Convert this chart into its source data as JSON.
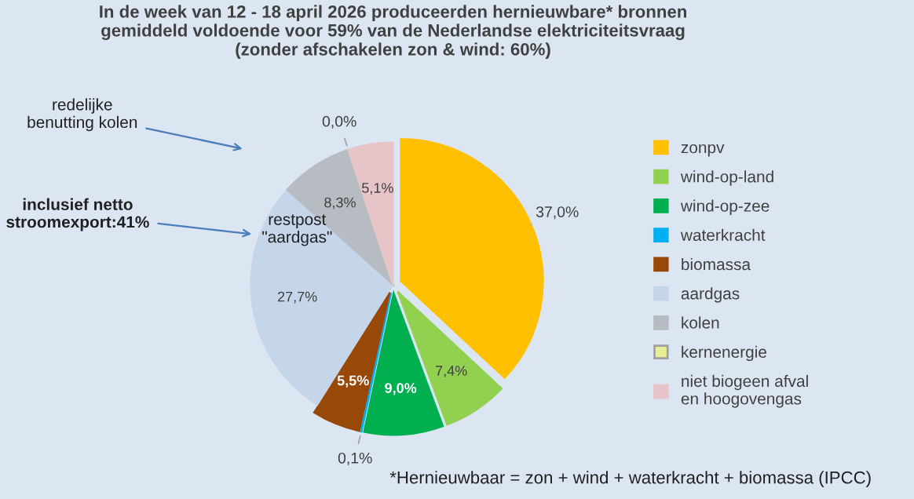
{
  "chart_data": {
    "type": "pie",
    "title": "In de week van 12 - 18 april 2026 produceerden hernieuwbare* bronnen\ngemiddeld voldoende voor 59% van de Nederlandse elektriciteitsvraag\n(zonder afschakelen zon & wind: 60%)",
    "categories": [
      "zonpv",
      "wind-op-land",
      "wind-op-zee",
      "waterkracht",
      "biomassa",
      "aardgas",
      "kolen",
      "kernenergie",
      "niet biogeen afval\nen hoogovengas"
    ],
    "values": [
      37.0,
      7.4,
      9.0,
      0.1,
      5.5,
      27.7,
      8.3,
      0.0,
      5.1
    ],
    "colors": [
      "#ffc000",
      "#92d050",
      "#00b050",
      "#00b0f0",
      "#984807",
      "#c5d5ea",
      "#b7bcc2",
      "#e9ee94",
      "#e6c4c8"
    ],
    "value_labels": [
      "37,0%",
      "7,4%",
      "9,0%",
      "0,1%",
      "5,5%",
      "27,7%",
      "8,3%",
      "0,0%",
      "5,1%"
    ],
    "legend": "right",
    "annotations": [
      "redelijke\nbenutting kolen",
      "inclusief netto\nstroomexport:41%",
      "restpost\n\"aardgas\"",
      "*Hernieuwbaar = zon + wind + waterkracht + biomassa (IPCC)"
    ]
  }
}
